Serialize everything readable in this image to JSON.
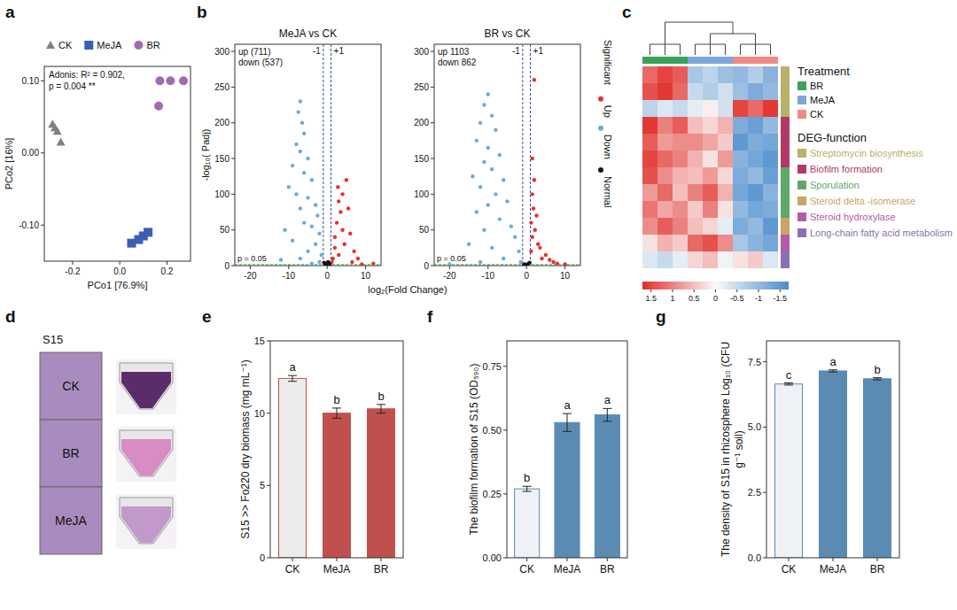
{
  "chart_data": [
    {
      "panel": "a",
      "type": "scatter",
      "xlabel": "PCo1 [76.9%]",
      "ylabel": "PCo2 [16%]",
      "annotation": [
        "Adonis: R² = 0.902,",
        "p = 0.004 **"
      ],
      "xlim": [
        -0.32,
        0.3
      ],
      "xticks": [
        -0.2,
        {
          "value": 0,
          "label": "0.0"
        },
        0.2
      ],
      "ylim": [
        -0.15,
        0.12
      ],
      "yticks": [
        {
          "value": -0.1,
          "label": "-0.10"
        },
        {
          "value": 0,
          "label": "0.00"
        },
        {
          "value": 0.1,
          "label": "0.10"
        }
      ],
      "legend": "top",
      "series": [
        {
          "name": "CK",
          "color": "#808080",
          "marker": "triangle",
          "x": [
            -0.285,
            -0.275,
            -0.265,
            -0.25
          ],
          "values": [
            0.04,
            0.035,
            0.03,
            0.015
          ]
        },
        {
          "name": "MeJA",
          "color": "#3a5fb0",
          "marker": "square",
          "x": [
            0.05,
            0.08,
            0.1,
            0.12
          ],
          "values": [
            -0.125,
            -0.12,
            -0.115,
            -0.11
          ]
        },
        {
          "name": "BR",
          "color": "#a06ab4",
          "marker": "circle",
          "x": [
            0.17,
            0.215,
            0.27,
            0.165
          ],
          "values": [
            0.1,
            0.1,
            0.1,
            0.065
          ]
        }
      ]
    },
    {
      "panel": "b",
      "type": "scatter",
      "xlabel": "log₂(Fold Change)",
      "ylabel": "-log₁₀( Padj)",
      "xlim": [
        -24,
        14
      ],
      "xticks": [
        -20,
        -10,
        0,
        10
      ],
      "ylim": [
        0,
        310
      ],
      "yticks": [
        0,
        50,
        100,
        150,
        200,
        250,
        300
      ],
      "legend": "right",
      "legend_title": "Significant",
      "groups": [
        {
          "name": "Up",
          "color": "#e8312b"
        },
        {
          "name": "Down",
          "color": "#6aaed6"
        },
        {
          "name": "Normal",
          "color": "#111111"
        }
      ],
      "vlines": [
        {
          "value": -1,
          "label": "-1"
        },
        {
          "value": 1,
          "label": "+1"
        }
      ],
      "hline": {
        "value": 1.301,
        "label": "p = 0.05"
      },
      "subplots": [
        {
          "title": "MeJA vs CK",
          "up_label": "up (711)",
          "down_label": "down (537)",
          "series": [
            {
              "x": [
                1.5,
                2,
                2.5,
                3,
                3.5,
                4,
                4.5,
                5,
                5.5,
                6,
                2,
                3,
                7,
                8,
                1.2,
                4,
                2.8,
                6.5,
                12,
                9
              ],
              "values": [
                10,
                40,
                60,
                90,
                75,
                50,
                30,
                120,
                80,
                45,
                25,
                15,
                20,
                10,
                5,
                100,
                110,
                5,
                3,
                2
              ]
            },
            {
              "x": [
                -7,
                -7.5,
                -6.5,
                -6,
                -8,
                -7,
                -5,
                -9,
                -6,
                -4,
                -10,
                -8,
                -5,
                -3,
                -7,
                -2.5,
                -6,
                -4,
                -11,
                -2,
                -9,
                -3,
                -5,
                -1.5,
                -7,
                -2,
                -12,
                -4
              ],
              "values": [
                230,
                215,
                200,
                185,
                170,
                160,
                150,
                140,
                130,
                120,
                110,
                100,
                95,
                85,
                80,
                70,
                60,
                55,
                50,
                45,
                35,
                30,
                20,
                15,
                10,
                5,
                8,
                3
              ]
            },
            {
              "x": [
                -0.5,
                0,
                0.5,
                -0.8,
                0.7,
                0.2,
                -0.3
              ],
              "values": [
                2,
                1,
                3,
                4,
                1,
                5,
                0.5
              ]
            }
          ]
        },
        {
          "title": "BR vs CK",
          "up_label": "up 1103",
          "down_label": "down 862",
          "series": [
            {
              "x": [
                2,
                1.5,
                2,
                1.5,
                1.8,
                1.2,
                2.2,
                1.5,
                3,
                1.2,
                4,
                5,
                6,
                7,
                8,
                10,
                3.5,
                2.6
              ],
              "values": [
                260,
                150,
                120,
                100,
                80,
                60,
                50,
                40,
                30,
                20,
                10,
                15,
                8,
                5,
                3,
                2,
                25,
                70
              ]
            },
            {
              "x": [
                -10,
                -11,
                -9,
                -12,
                -8,
                -13,
                -10,
                -7,
                -11,
                -9,
                -14,
                -6,
                -12,
                -8,
                -5,
                -10,
                -13,
                -7,
                -4,
                -11,
                -3,
                -15,
                -9,
                -2,
                -6,
                -1.5,
                -20,
                -12
              ],
              "values": [
                240,
                225,
                210,
                200,
                190,
                175,
                165,
                155,
                145,
                135,
                125,
                120,
                110,
                100,
                90,
                85,
                75,
                65,
                55,
                50,
                40,
                30,
                25,
                20,
                10,
                5,
                2,
                5
              ]
            },
            {
              "x": [
                -0.5,
                0,
                0.5,
                0.8,
                -0.7
              ],
              "values": [
                2,
                1,
                3,
                4,
                1
              ]
            }
          ]
        }
      ]
    },
    {
      "panel": "c",
      "type": "heatmap",
      "treatment_title": "Treatment",
      "function_title": "DEG-function",
      "treatments": [
        {
          "name": "BR",
          "color": "#3aa35a"
        },
        {
          "name": "MeJA",
          "color": "#7ea6d8"
        },
        {
          "name": "CK",
          "color": "#f08a84"
        }
      ],
      "functions": [
        {
          "name": "Streptomycin biosynthesis",
          "color": "#b9b06a"
        },
        {
          "name": "Biofilm formation",
          "color": "#b0396a"
        },
        {
          "name": "Sporulation",
          "color": "#5fa86a"
        },
        {
          "name": "Steroid delta -isomerase",
          "color": "#c9a468"
        },
        {
          "name": "Steroid hydroxylase",
          "color": "#b45aa6"
        },
        {
          "name": "Long-chain fatty acid metabolism",
          "color": "#8a70b8"
        }
      ],
      "column_groups": [
        0,
        0,
        0,
        1,
        1,
        1,
        2,
        2,
        2
      ],
      "row_groups": [
        0,
        0,
        0,
        1,
        1,
        1,
        2,
        2,
        2,
        3,
        4,
        5
      ],
      "cells": [
        [
          1.2,
          1.5,
          1.3,
          -0.8,
          -0.6,
          -0.9,
          -1.0,
          -0.7,
          -1.1
        ],
        [
          1.4,
          1.6,
          1.2,
          -0.5,
          -0.7,
          -0.4,
          -0.9,
          -1.2,
          -1.0
        ],
        [
          -0.6,
          -0.3,
          -0.5,
          -0.2,
          0.1,
          -0.4,
          1.5,
          1.2,
          1.6
        ],
        [
          1.6,
          1.0,
          1.3,
          0.5,
          0.3,
          0.6,
          -1.2,
          -1.4,
          -1.0
        ],
        [
          1.3,
          0.8,
          0.9,
          0.9,
          0.7,
          0.4,
          -1.5,
          -1.2,
          -1.3
        ],
        [
          1.5,
          1.2,
          1.0,
          0.6,
          0.2,
          0.8,
          -1.1,
          -1.3,
          -1.5
        ],
        [
          1.4,
          0.9,
          0.6,
          0.5,
          0.8,
          0.3,
          -1.2,
          -1.0,
          -1.4
        ],
        [
          0.8,
          1.2,
          0.5,
          1.0,
          1.3,
          0.6,
          -1.3,
          -1.5,
          -1.1
        ],
        [
          1.1,
          0.7,
          0.9,
          0.4,
          1.0,
          0.2,
          -1.0,
          -1.3,
          -1.2
        ],
        [
          0.9,
          1.3,
          1.0,
          0.5,
          0.3,
          -0.2,
          -1.2,
          -1.0,
          -1.5
        ],
        [
          0.2,
          0.6,
          0.4,
          1.2,
          1.4,
          0.9,
          -0.8,
          -1.1,
          -1.3
        ],
        [
          -0.3,
          -0.5,
          -0.2,
          0.3,
          0.5,
          -0.1,
          0.2,
          0.4,
          -0.3
        ]
      ],
      "colorbar": {
        "range": [
          1.7,
          -1.7
        ],
        "ticks": [
          1.5,
          1,
          0.5,
          0,
          -0.5,
          -1,
          -1.5
        ]
      }
    },
    {
      "panel": "e",
      "type": "bar",
      "ylabel": "S15 >> Fo220 dry biomass (mg mL⁻¹)",
      "categories": [
        "CK",
        "MeJA",
        "BR"
      ],
      "values": [
        12.4,
        10.0,
        10.3
      ],
      "errors": [
        0.2,
        0.35,
        0.3
      ],
      "letters": [
        "a",
        "b",
        "b"
      ],
      "colors": [
        "#ececec",
        "#c0504d",
        "#c0504d"
      ],
      "ylim": [
        0,
        15
      ],
      "yticks": [
        0,
        5,
        10,
        15
      ]
    },
    {
      "panel": "f",
      "type": "bar",
      "ylabel": "The biofilm formation of S15 (OD₅₉₀)",
      "categories": [
        "CK",
        "MeJA",
        "BR"
      ],
      "values": [
        0.27,
        0.53,
        0.56
      ],
      "errors": [
        0.01,
        0.035,
        0.025
      ],
      "letters": [
        "b",
        "a",
        "a"
      ],
      "colors": [
        "#eef2f6",
        "#5a8cb3",
        "#5a8cb3"
      ],
      "ylim": [
        0,
        0.85
      ],
      "yticks": [
        {
          "value": 0,
          "label": "0.00"
        },
        {
          "value": 0.25,
          "label": "0.25"
        },
        {
          "value": 0.5,
          "label": "0.50"
        },
        {
          "value": 0.75,
          "label": "0.75"
        }
      ]
    },
    {
      "panel": "g",
      "type": "bar",
      "ylabel": "The density of S15 in rhizosphere Log₁₀ (CFU g⁻¹ soil)",
      "categories": [
        "CK",
        "MeJA",
        "BR"
      ],
      "values": [
        6.65,
        7.15,
        6.85
      ],
      "errors": [
        0.04,
        0.04,
        0.04
      ],
      "letters": [
        "c",
        "a",
        "b"
      ],
      "colors": [
        "#eef2f6",
        "#5a8cb3",
        "#5a8cb3"
      ],
      "ylim": [
        0,
        8.3
      ],
      "yticks": [
        {
          "value": 0,
          "label": "0.0"
        },
        2.5,
        {
          "value": 5,
          "label": "5.0"
        },
        7.5
      ]
    }
  ],
  "panel_d": {
    "panel": "d",
    "title": "S15",
    "labels": [
      "CK",
      "BR",
      "MeJA"
    ]
  }
}
